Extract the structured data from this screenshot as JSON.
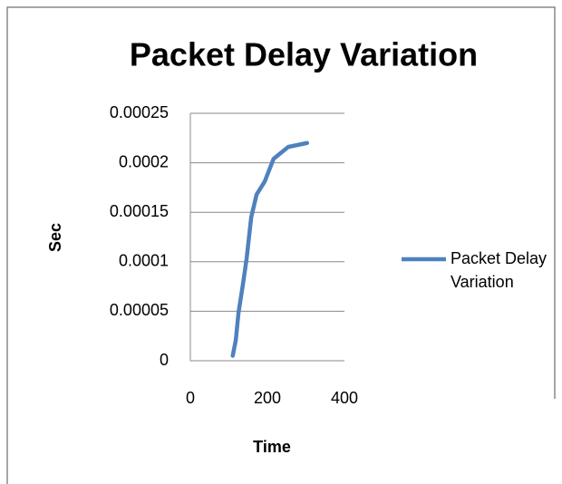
{
  "chart_data": {
    "type": "line",
    "title": "Packet Delay Variation",
    "xlabel": "Time",
    "ylabel": "Sec",
    "x": [
      110,
      118,
      125,
      136,
      146,
      158,
      172,
      193,
      216,
      254,
      303
    ],
    "series": [
      {
        "name": "Packet Delay Variation",
        "color": "#4f81bd",
        "values": [
          5e-06,
          2.1e-05,
          4.85e-05,
          7.6e-05,
          0.000103,
          0.000145,
          0.000168,
          0.000181,
          0.000204,
          0.000216,
          0.00022
        ]
      }
    ],
    "xlim": [
      0,
      400
    ],
    "xticks": [
      0,
      200,
      400
    ],
    "ylim": [
      0,
      0.00025
    ],
    "yticks": [
      0,
      5e-05,
      0.0001,
      0.00015,
      0.0002,
      0.00025
    ],
    "grid": true,
    "legend": "right"
  }
}
